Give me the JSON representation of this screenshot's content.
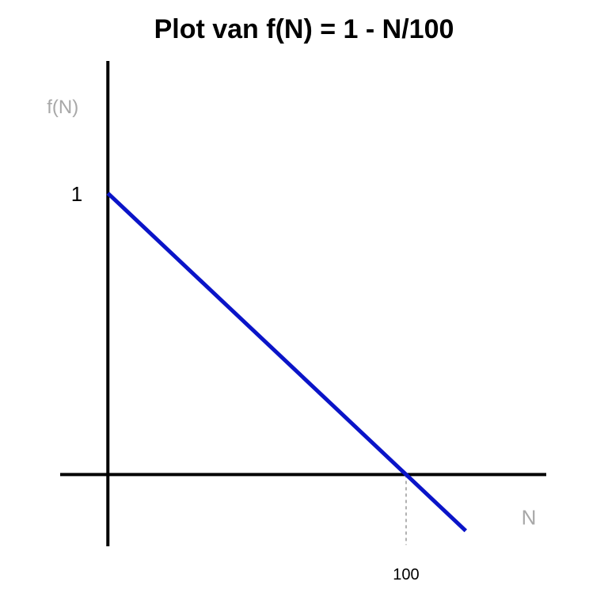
{
  "chart_data": {
    "type": "line",
    "title": "Plot van f(N) = 1 - N/100",
    "xlabel": "N",
    "ylabel": "f(N)",
    "xlim": [
      -16,
      147
    ],
    "ylim": [
      -0.255,
      1.47
    ],
    "grid": false,
    "series": [
      {
        "x": [
          0,
          120
        ],
        "y": [
          1,
          -0.2
        ]
      }
    ],
    "x_ticks": [
      {
        "value": 100,
        "label": "100"
      }
    ],
    "y_ticks": [
      {
        "value": 1,
        "label": "1"
      }
    ],
    "x_marker": {
      "value": 100,
      "y_from": 0,
      "y_to": -0.25
    },
    "colors": {
      "line": "#0a14c8",
      "axes": "#000000",
      "axis_label": "#a8a8a8",
      "marker": "#b0b0b0",
      "tick_label": "#000000"
    }
  }
}
